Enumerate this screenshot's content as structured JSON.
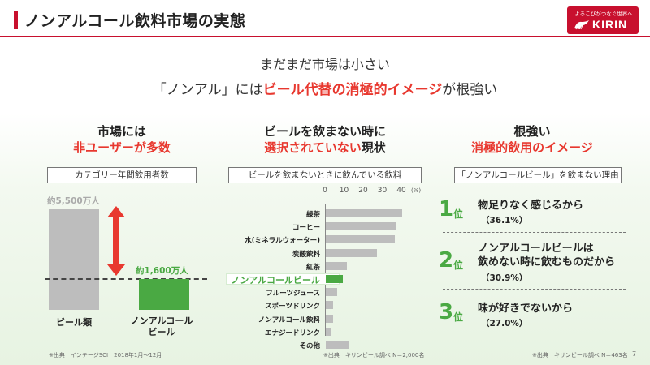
{
  "title": "ノンアルコール飲料市場の実態",
  "logo": {
    "tagline": "よろこびがつなぐ世界へ",
    "brand": "KIRIN",
    "icon": "kirin-mark-icon"
  },
  "headline": {
    "line1": "まだまだ市場は小さい",
    "line2_pre": "「ノンアル」には",
    "line2_accent": "ビール代替の消極的イメージ",
    "line2_post": "が根強い"
  },
  "colors": {
    "accent_red": "#e8382f",
    "brand_red": "#c8102e",
    "green": "#4aa943",
    "gray_bar": "#bdbdbd"
  },
  "left": {
    "head_line1": "市場には",
    "head_line2": "非ユーザーが多数",
    "caption": "カテゴリー年間飲用者数",
    "bars": [
      {
        "label": "ビール類",
        "value_label": "約5,500万人",
        "value": 5500
      },
      {
        "label_line1": "ノンアルコール",
        "label_line2": "ビール",
        "value_label": "約1,600万人",
        "value": 1600
      }
    ],
    "source": "※出典　インテージSCI　2018年1月～12月"
  },
  "middle": {
    "head_line1": "ビールを飲まない時に",
    "head_line2_red": "選択されていない",
    "head_line2_post": "現状",
    "caption": "ビールを飲まないときに飲んでいる飲料",
    "source": "※出典　キリンビール調べ N＝2,000名"
  },
  "chart_data": {
    "type": "bar",
    "orientation": "horizontal",
    "categories": [
      "緑茶",
      "コーヒー",
      "水(ミネラルウォーター)",
      "炭酸飲料",
      "紅茶",
      "ノンアルコールビール",
      "フルーツジュース",
      "スポーツドリンク",
      "ノンアルコール飲料",
      "エナジードリンク",
      "その他"
    ],
    "values": [
      40,
      37,
      36,
      27,
      11,
      9,
      6,
      4,
      4,
      3,
      12
    ],
    "highlight_index": 5,
    "xticks": [
      "0",
      "10",
      "20",
      "30",
      "40"
    ],
    "xunit": "(%)",
    "xlim": [
      0,
      45
    ]
  },
  "right": {
    "head_line1": "根強い",
    "head_line2": "消極的飲用のイメージ",
    "caption_pre": "「ノンアルコールビール」を飲まない",
    "caption_post": "理由",
    "ranks": [
      {
        "num": "1",
        "suffix": "位",
        "text_line1": "物足りなく感じるから",
        "text_line2": "",
        "pct": "（36.1%）"
      },
      {
        "num": "2",
        "suffix": "位",
        "text_line1": "ノンアルコールビールは",
        "text_line2": "飲めない時に飲むものだから",
        "pct": "（30.9%）"
      },
      {
        "num": "3",
        "suffix": "位",
        "text_line1": "味が好きでないから",
        "text_line2": "",
        "pct": "（27.0%）"
      }
    ],
    "source": "※出典　キリンビール調べ N＝463名"
  },
  "page_number": "7"
}
